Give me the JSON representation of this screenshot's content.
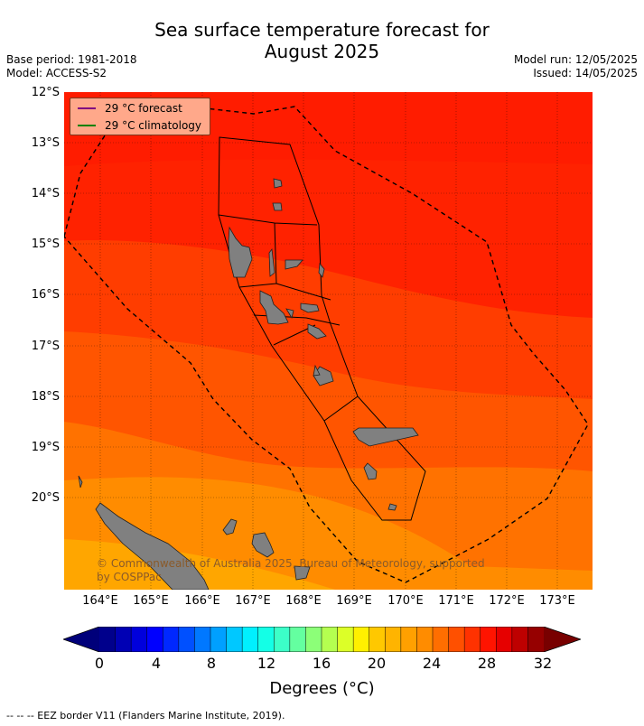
{
  "title_line1": "Sea surface temperature forecast for",
  "title_line2": "August 2025",
  "meta": {
    "base_period": "Base period: 1981-2018",
    "model": "Model: ACCESS-S2",
    "model_run": "Model run: 12/05/2025",
    "issued": "Issued: 14/05/2025"
  },
  "legend": {
    "forecast": "29 °C  forecast",
    "climatology": "29 °C  climatology",
    "forecast_color": "#800080",
    "climatology_color": "#008000"
  },
  "lat_labels": [
    "12°S",
    "13°S",
    "14°S",
    "15°S",
    "16°S",
    "17°S",
    "18°S",
    "19°S",
    "20°S"
  ],
  "lon_labels": [
    "164°E",
    "165°E",
    "166°E",
    "167°E",
    "168°E",
    "169°E",
    "170°E",
    "171°E",
    "172°E",
    "173°E"
  ],
  "map": {
    "lon_min": 163.3,
    "lon_max": 173.7,
    "lat_min": -21.8,
    "lat_max": -12.0,
    "land_color": "#808080",
    "eez_color": "#000000"
  },
  "copyright": "© Commonwealth of Australia 2025, Bureau of Meteorology, supported by COSPPac",
  "colorbar": {
    "ticks": [
      "0",
      "4",
      "8",
      "12",
      "16",
      "20",
      "24",
      "28",
      "32"
    ],
    "label": "Degrees (°C)",
    "colors": [
      "#00008c",
      "#0000b4",
      "#0000dc",
      "#0000ff",
      "#0028ff",
      "#0050ff",
      "#0078ff",
      "#00a0ff",
      "#00c8ff",
      "#00f0ff",
      "#14ffe6",
      "#3cffc8",
      "#64ffa0",
      "#8cff78",
      "#b4ff50",
      "#dcff28",
      "#fff000",
      "#ffc800",
      "#ffb400",
      "#ffa000",
      "#ff8c00",
      "#ff6e00",
      "#ff5000",
      "#ff3200",
      "#ff1400",
      "#e60000",
      "#be0000",
      "#960000"
    ],
    "under_color": "#00007a",
    "over_color": "#780000"
  },
  "footer": "--  --  -- EEZ border V11 (Flanders Marine Institute, 2019)."
}
